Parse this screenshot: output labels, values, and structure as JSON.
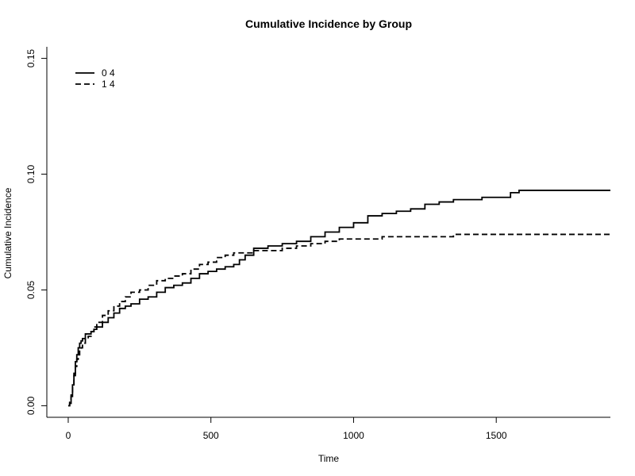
{
  "chart_data": {
    "type": "line",
    "title": "Cumulative Incidence by Group",
    "xlabel": "Time",
    "ylabel": "Cumulative Incidence",
    "xlim": [
      -75,
      1900
    ],
    "ylim": [
      -0.005,
      0.155
    ],
    "x_ticks": [
      0,
      500,
      1000,
      1500
    ],
    "x_tick_labels": [
      "0",
      "500",
      "1000",
      "1500"
    ],
    "y_ticks": [
      0.0,
      0.05,
      0.1,
      0.15
    ],
    "y_tick_labels": [
      "0.00",
      "0.05",
      "0.10",
      "0.15"
    ],
    "grid": false,
    "legend_position": "top-left",
    "series": [
      {
        "name": "0 4",
        "dash": "solid",
        "color": "#000000",
        "x": [
          0,
          5,
          10,
          15,
          20,
          25,
          30,
          35,
          40,
          45,
          50,
          60,
          70,
          80,
          90,
          100,
          120,
          140,
          160,
          180,
          200,
          220,
          250,
          280,
          310,
          340,
          370,
          400,
          430,
          460,
          490,
          520,
          550,
          580,
          600,
          620,
          650,
          700,
          750,
          800,
          850,
          900,
          950,
          1000,
          1050,
          1100,
          1150,
          1200,
          1250,
          1300,
          1350,
          1400,
          1450,
          1500,
          1550,
          1580,
          1900
        ],
        "y": [
          0,
          0.001,
          0.004,
          0.009,
          0.014,
          0.019,
          0.022,
          0.025,
          0.027,
          0.028,
          0.029,
          0.031,
          0.031,
          0.032,
          0.033,
          0.034,
          0.036,
          0.038,
          0.04,
          0.042,
          0.043,
          0.044,
          0.046,
          0.047,
          0.049,
          0.051,
          0.052,
          0.053,
          0.055,
          0.057,
          0.058,
          0.059,
          0.06,
          0.061,
          0.063,
          0.065,
          0.068,
          0.069,
          0.07,
          0.071,
          0.073,
          0.075,
          0.077,
          0.079,
          0.082,
          0.083,
          0.084,
          0.085,
          0.087,
          0.088,
          0.089,
          0.089,
          0.09,
          0.09,
          0.092,
          0.093,
          0.093
        ]
      },
      {
        "name": "1 4",
        "dash": "dashed",
        "color": "#000000",
        "x": [
          0,
          5,
          10,
          15,
          20,
          25,
          30,
          35,
          40,
          45,
          50,
          60,
          70,
          80,
          90,
          100,
          120,
          140,
          160,
          180,
          200,
          220,
          250,
          280,
          310,
          340,
          370,
          400,
          430,
          460,
          490,
          520,
          550,
          580,
          600,
          650,
          700,
          750,
          800,
          850,
          900,
          950,
          1000,
          1100,
          1150,
          1200,
          1300,
          1350,
          1400,
          1900
        ],
        "y": [
          0,
          0.002,
          0.005,
          0.009,
          0.013,
          0.017,
          0.02,
          0.022,
          0.024,
          0.025,
          0.027,
          0.029,
          0.03,
          0.032,
          0.034,
          0.036,
          0.039,
          0.041,
          0.043,
          0.045,
          0.047,
          0.049,
          0.05,
          0.052,
          0.054,
          0.055,
          0.056,
          0.057,
          0.059,
          0.061,
          0.062,
          0.064,
          0.065,
          0.066,
          0.066,
          0.067,
          0.067,
          0.068,
          0.069,
          0.07,
          0.071,
          0.072,
          0.072,
          0.073,
          0.073,
          0.073,
          0.073,
          0.074,
          0.074,
          0.074
        ]
      }
    ]
  }
}
